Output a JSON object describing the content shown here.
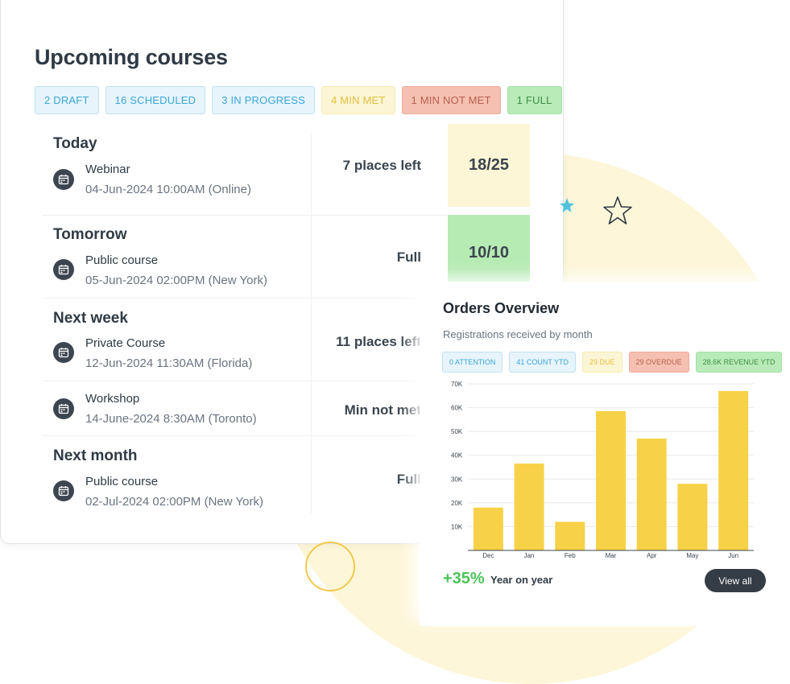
{
  "upcoming": {
    "title": "Upcoming courses",
    "chips": [
      {
        "label": "2 DRAFT",
        "tone": "blue"
      },
      {
        "label": "16 SCHEDULED",
        "tone": "blue"
      },
      {
        "label": "3 IN PROGRESS",
        "tone": "blue"
      },
      {
        "label": "4 MIN MET",
        "tone": "yellow"
      },
      {
        "label": "1 MIN NOT MET",
        "tone": "red"
      },
      {
        "label": "1 FULL",
        "tone": "green"
      }
    ],
    "groups": {
      "today": "Today",
      "tomorrow": "Tomorrow",
      "next_week": "Next week",
      "next_month": "Next month"
    },
    "courses": [
      {
        "name": "Webinar",
        "date": "04-Jun-2024 10:00AM (Online)",
        "places": "7 places left",
        "capacity": "18/25"
      },
      {
        "name": "Public course",
        "date": "05-Jun-2024 02:00PM (New York)",
        "places": "Full",
        "capacity": "10/10"
      },
      {
        "name": "Private Course",
        "date": "12-Jun-2024 11:30AM (Florida)",
        "places": "11 places left"
      },
      {
        "name": "Workshop",
        "date": "14-June-2024 8:30AM (Toronto)",
        "places": "Min not met"
      },
      {
        "name": "Public course",
        "date": "02-Jul-2024 02:00PM (New York)",
        "places": "Full"
      }
    ]
  },
  "orders": {
    "title": "Orders Overview",
    "subtitle": "Registrations received by month",
    "chips": [
      {
        "label": "0 ATTENTION",
        "tone": "blue"
      },
      {
        "label": "41 COUNT YTD",
        "tone": "blue"
      },
      {
        "label": "29 DUE",
        "tone": "yellow"
      },
      {
        "label": "29 OVERDUE",
        "tone": "red"
      },
      {
        "label": "28.6K REVENUE YTD",
        "tone": "green"
      }
    ],
    "growth": "+35%",
    "growth_label": "Year on year",
    "view_all": "View all"
  },
  "colors": {
    "bar": "#f7d147",
    "growth": "#4cc35a",
    "dark_button": "#343c45"
  },
  "chart_data": {
    "type": "bar",
    "title": "",
    "xlabel": "",
    "ylabel": "",
    "categories": [
      "Dec",
      "Jan",
      "Feb",
      "Mar",
      "Apr",
      "May",
      "Jun"
    ],
    "values": [
      18000,
      36500,
      12000,
      58500,
      47000,
      28000,
      67000
    ],
    "yticks": [
      {
        "value": 10000,
        "label": "10K"
      },
      {
        "value": 20000,
        "label": "20K"
      },
      {
        "value": 30000,
        "label": "30K"
      },
      {
        "value": 40000,
        "label": "40K"
      },
      {
        "value": 50000,
        "label": "50K"
      },
      {
        "value": 60000,
        "label": "60K"
      },
      {
        "value": 70000,
        "label": "70K"
      }
    ],
    "ylim": [
      0,
      70000
    ],
    "grid": true
  }
}
